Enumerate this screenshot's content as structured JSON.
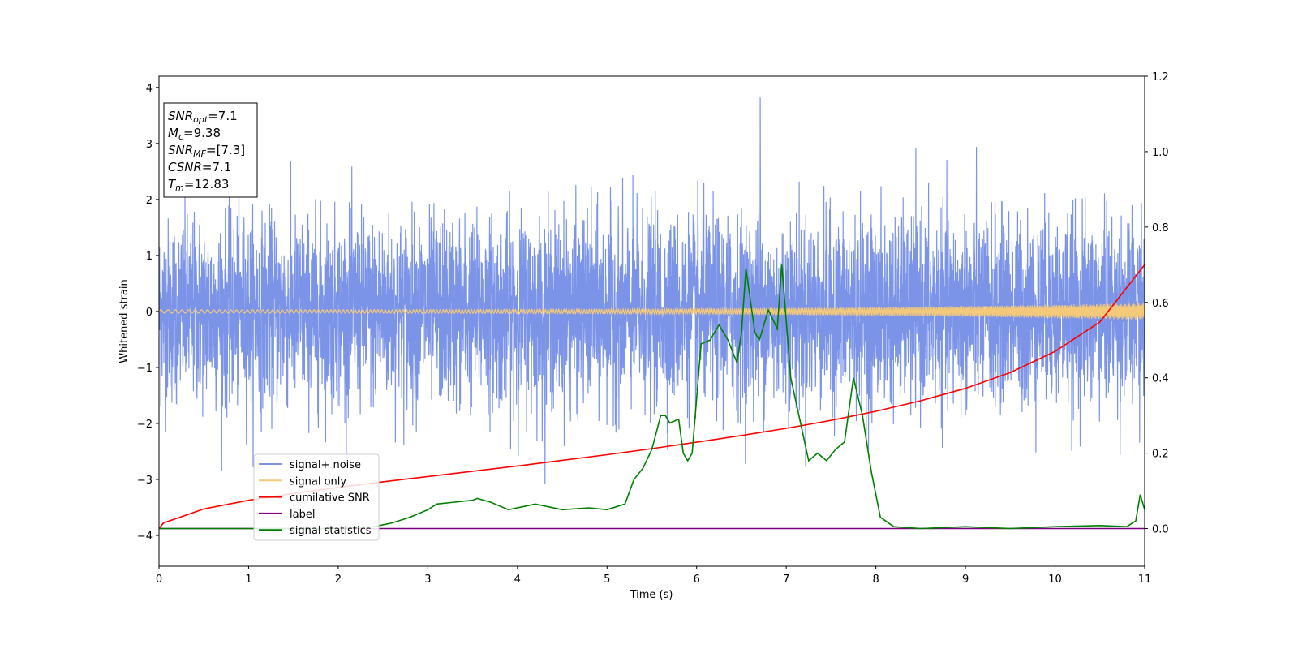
{
  "chart_data": {
    "type": "line",
    "xlabel": "Time (s)",
    "ylabel": "Whitened strain",
    "xlim": [
      0,
      11
    ],
    "ylim": [
      -4.55,
      4.2
    ],
    "y2lim": [
      -0.1,
      1.2
    ],
    "xticks": [
      "0",
      "1",
      "2",
      "3",
      "4",
      "5",
      "6",
      "7",
      "8",
      "9",
      "10",
      "11"
    ],
    "yticks": [
      "4",
      "3",
      "2",
      "1",
      "0",
      "−1",
      "−2",
      "−3",
      "−4"
    ],
    "y2ticks": [
      "1.2",
      "1.0",
      "0.8",
      "0.6",
      "0.4",
      "0.2",
      "0.0"
    ],
    "grid": false,
    "legend_position": "lower-left",
    "info_box": [
      {
        "base": "SNR",
        "sub": "opt",
        "value": "=7.1"
      },
      {
        "base": "M",
        "sub": "c",
        "value": "=9.38"
      },
      {
        "base": "SNR",
        "sub": "MF",
        "value": "=[7.3]"
      },
      {
        "base": "CSNR",
        "sub": "",
        "value": "=7.1"
      },
      {
        "base": "T",
        "sub": "m",
        "value": "=12.83"
      }
    ],
    "series": [
      {
        "name": "signal+ noise",
        "color": "#7b94e8",
        "axis": "left",
        "kind": "noise",
        "amplitude": 1.0,
        "max_peak": 3.82
      },
      {
        "name": "signal only",
        "color": "#f5c97a",
        "axis": "left",
        "kind": "chirp",
        "amplitude_start": 0.03,
        "amplitude_end": 0.15
      },
      {
        "name": "cumilative SNR",
        "color": "#ff0000",
        "axis": "right",
        "x": [
          0,
          0.05,
          0.5,
          1,
          1.5,
          2,
          2.5,
          3,
          3.5,
          4,
          4.5,
          5,
          5.5,
          6,
          6.5,
          7,
          7.5,
          8,
          8.5,
          9,
          9.5,
          10,
          10.5,
          11
        ],
        "values": [
          0.0,
          0.015,
          0.052,
          0.075,
          0.093,
          0.109,
          0.124,
          0.138,
          0.152,
          0.166,
          0.181,
          0.196,
          0.212,
          0.229,
          0.247,
          0.266,
          0.287,
          0.311,
          0.339,
          0.372,
          0.414,
          0.47,
          0.548,
          0.7
        ]
      },
      {
        "name": "label",
        "color": "#800080",
        "axis": "right",
        "x": [
          0,
          11
        ],
        "values": [
          0,
          0
        ]
      },
      {
        "name": "signal statistics",
        "color": "#008000",
        "axis": "right",
        "x": [
          0,
          1,
          2,
          2.4,
          2.6,
          2.8,
          3.0,
          3.1,
          3.3,
          3.5,
          3.55,
          3.7,
          3.9,
          4.2,
          4.5,
          4.8,
          5.0,
          5.2,
          5.3,
          5.4,
          5.5,
          5.6,
          5.65,
          5.7,
          5.8,
          5.85,
          5.9,
          5.95,
          6.05,
          6.15,
          6.25,
          6.35,
          6.45,
          6.5,
          6.55,
          6.65,
          6.7,
          6.8,
          6.9,
          6.95,
          7.05,
          7.15,
          7.25,
          7.35,
          7.45,
          7.55,
          7.65,
          7.75,
          7.85,
          7.95,
          8.05,
          8.2,
          8.5,
          9.0,
          9.5,
          10.0,
          10.5,
          10.8,
          10.9,
          10.95,
          11.0
        ],
        "values": [
          0.0,
          0.0,
          0.0,
          0.005,
          0.015,
          0.03,
          0.05,
          0.065,
          0.07,
          0.075,
          0.08,
          0.07,
          0.05,
          0.065,
          0.05,
          0.055,
          0.05,
          0.065,
          0.13,
          0.16,
          0.21,
          0.3,
          0.3,
          0.28,
          0.29,
          0.2,
          0.18,
          0.2,
          0.49,
          0.5,
          0.54,
          0.5,
          0.44,
          0.52,
          0.69,
          0.52,
          0.5,
          0.58,
          0.53,
          0.7,
          0.4,
          0.29,
          0.18,
          0.2,
          0.18,
          0.21,
          0.23,
          0.4,
          0.3,
          0.15,
          0.03,
          0.005,
          0.0,
          0.005,
          0.0,
          0.005,
          0.008,
          0.005,
          0.02,
          0.09,
          0.05
        ]
      }
    ]
  }
}
